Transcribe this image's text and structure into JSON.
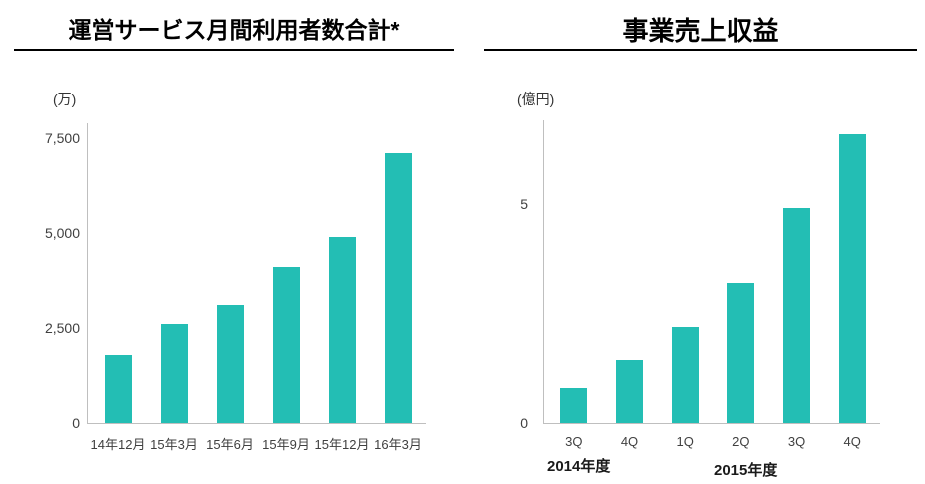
{
  "page": {
    "background": "#ffffff"
  },
  "colors": {
    "bar_teal": "#23BEB4",
    "axis_line": "#BFBFBF",
    "tick_text": "#404040",
    "title_text": "#000000"
  },
  "chart_data": [
    {
      "type": "bar",
      "title": "運営サービス月間利用者数合計*",
      "unit_label": "(万)",
      "categories": [
        "14年12月",
        "15年3月",
        "15年6月",
        "15年9月",
        "15年12月",
        "16年3月"
      ],
      "values": [
        1800,
        2600,
        3100,
        4100,
        4900,
        7100
      ],
      "ylim": [
        0,
        7900
      ],
      "yticks": [
        {
          "value": 0,
          "label": "0"
        },
        {
          "value": 2500,
          "label": "2,500"
        },
        {
          "value": 5000,
          "label": "5,000"
        },
        {
          "value": 7500,
          "label": "7,500"
        }
      ],
      "grid": false,
      "legend": "none",
      "bar_color": "#23BEB4"
    },
    {
      "type": "bar",
      "title": "事業売上収益",
      "unit_label": "(億円)",
      "categories": [
        "3Q",
        "4Q",
        "1Q",
        "2Q",
        "3Q",
        "4Q"
      ],
      "values": [
        0.8,
        1.45,
        2.2,
        3.2,
        4.9,
        6.6
      ],
      "ylim": [
        0,
        6.92
      ],
      "yticks": [
        {
          "value": 0,
          "label": "0"
        },
        {
          "value": 5,
          "label": "5"
        }
      ],
      "group_labels": [
        "2014年度",
        "2015年度"
      ],
      "grid": false,
      "legend": "none",
      "bar_color": "#23BEB4"
    }
  ]
}
